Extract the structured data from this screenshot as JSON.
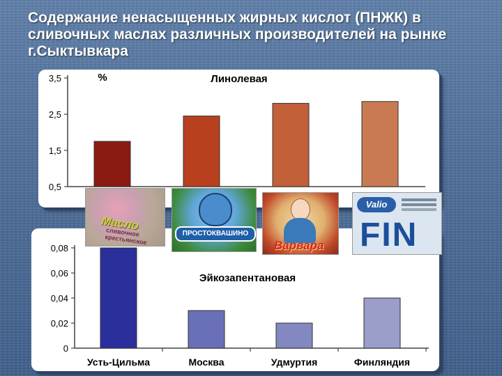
{
  "slide": {
    "title": "Содержание ненасыщенных жирных кислот (ПНЖК) в сливочных маслах различных производителей на рынке г.Сыктывкара"
  },
  "colors": {
    "background": "#4e6e98",
    "panel": "#ffffff",
    "panel_shadow": "#2d4466"
  },
  "logos": [
    {
      "name": "Масло сливочное крестьянское",
      "text": "Масло",
      "subtext": "сливочное крестьянское"
    },
    {
      "name": "Простоквашино",
      "text": "ПРОСТОКВАШИНО"
    },
    {
      "name": "Варвара",
      "text": "Варвара"
    },
    {
      "name": "Valio",
      "text": "Valio",
      "subtext": "FIN"
    }
  ],
  "chart_data": [
    {
      "type": "bar",
      "title": "Линолевая",
      "ylabel": "%",
      "categories": [
        "Усть-Цильма",
        "Москва",
        "Удмуртия",
        "Финляндия"
      ],
      "values": [
        1.75,
        2.45,
        2.8,
        2.85
      ],
      "ylim": [
        0.5,
        3.5
      ],
      "yticks": [
        "3,5",
        "2,5",
        "1,5",
        "0,5"
      ],
      "ytick_values": [
        3.5,
        2.5,
        1.5,
        0.5
      ],
      "bar_colors": [
        "#8b1a10",
        "#b8401e",
        "#c2603a",
        "#c97a52"
      ],
      "grid": false,
      "legend": "none"
    },
    {
      "type": "bar",
      "title": "Эйкозапентановая",
      "categories": [
        "Усть-Цильма",
        "Москва",
        "Удмуртия",
        "Финляндия"
      ],
      "values": [
        0.08,
        0.03,
        0.02,
        0.04
      ],
      "ylim": [
        0,
        0.08
      ],
      "yticks": [
        "0,08",
        "0,06",
        "0,04",
        "0,02",
        "0"
      ],
      "ytick_values": [
        0.08,
        0.06,
        0.04,
        0.02,
        0
      ],
      "bar_colors": [
        "#2a2f9c",
        "#6a70b8",
        "#8388c0",
        "#9a9ec8"
      ],
      "grid": false,
      "legend": "none"
    }
  ]
}
